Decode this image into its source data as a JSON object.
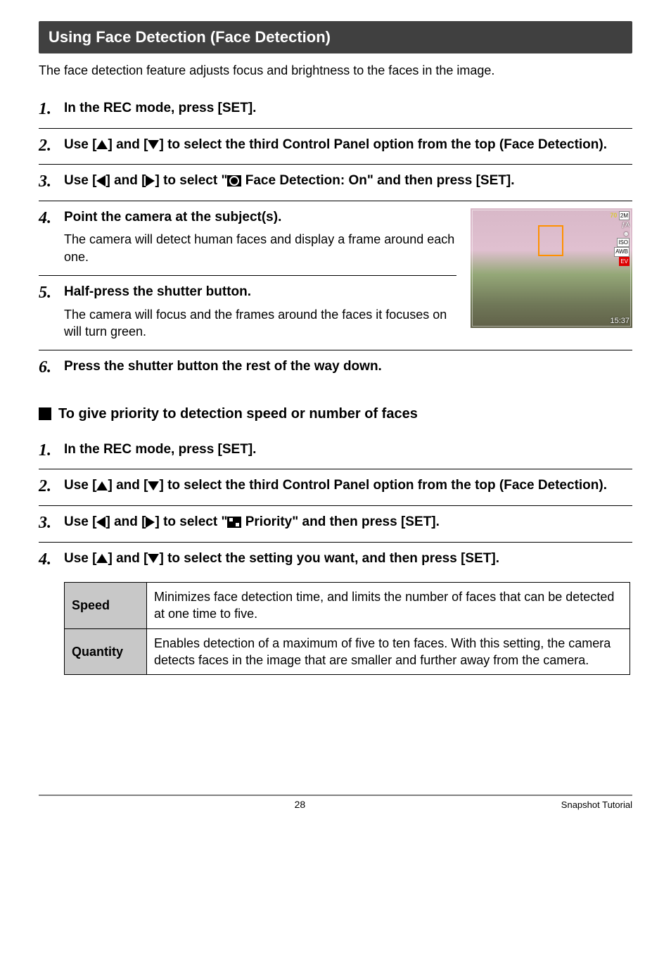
{
  "section": {
    "header": "Using Face Detection (Face Detection)"
  },
  "intro": "The face detection feature adjusts focus and brightness to the faces in the image.",
  "s1": {
    "n": "1.",
    "title": "In the REC mode, press [SET]."
  },
  "s2": {
    "n": "2.",
    "pre": "Use [",
    "mid": "] and [",
    "post": "] to select the third Control Panel option from the top (Face Detection)."
  },
  "s3": {
    "n": "3.",
    "pre": "Use [",
    "mid": "] and [",
    "seg": "] to select \"",
    "post": " Face Detection: On\" and then press [SET]."
  },
  "s4": {
    "n": "4.",
    "title": "Point the camera at the subject(s).",
    "desc": "The camera will detect human faces and display a frame around each one."
  },
  "s5": {
    "n": "5.",
    "title": "Half-press the shutter button.",
    "desc": "The camera will focus and the frames around the faces it focuses on will turn green."
  },
  "s6": {
    "n": "6.",
    "title": "Press the shutter button the rest of the way down."
  },
  "subhead": "To give priority to detection speed or number of faces",
  "p1": {
    "n": "1.",
    "title": "In the REC mode, press [SET]."
  },
  "p2": {
    "n": "2.",
    "pre": "Use [",
    "mid": "] and [",
    "post": "] to select the third Control Panel option from the top (Face Detection)."
  },
  "p3": {
    "n": "3.",
    "pre": "Use [",
    "mid": "] and [",
    "seg": "] to select \"",
    "post": " Priority\" and then press [SET]."
  },
  "p4": {
    "n": "4.",
    "pre": "Use [",
    "mid": "] and [",
    "post": "] to select the setting you want, and then press [SET]."
  },
  "table": {
    "r1": {
      "label": "Speed",
      "text": "Minimizes face detection time, and limits the number of faces that can be detected at one time to five."
    },
    "r2": {
      "label": "Quantity",
      "text": "Enables detection of a maximum of five to ten faces. With this setting, the camera detects faces in the image that are smaller and further away from the camera."
    }
  },
  "preview": {
    "badge1": "2M",
    "flash": "ƒA",
    "iso": "ISO",
    "awb": "AWB",
    "ev": "EV",
    "time": "15:37"
  },
  "footer": {
    "page": "28",
    "section": "Snapshot Tutorial"
  }
}
